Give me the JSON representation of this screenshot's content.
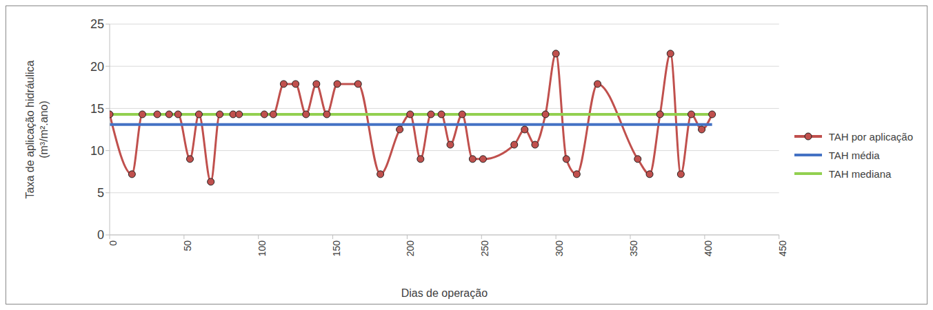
{
  "chart_data": {
    "type": "line",
    "x_label": "Dias de operação",
    "y_label": "Taxa de aplicação hidráulica\n(m³/m².ano)",
    "xlim": [
      0,
      450
    ],
    "xticks": [
      0,
      50,
      100,
      150,
      200,
      250,
      300,
      350,
      400,
      450
    ],
    "ylim": [
      0,
      25
    ],
    "yticks": [
      0,
      5,
      10,
      15,
      20,
      25
    ],
    "grid": true,
    "legend": "right",
    "series": [
      {
        "name": "TAH por aplicação",
        "color": "#c0504d",
        "marker": "circle",
        "x": [
          0,
          15,
          22,
          32,
          40,
          46,
          54,
          60,
          68,
          74,
          83,
          87,
          104,
          110,
          117,
          125,
          132,
          139,
          146,
          153,
          167,
          182,
          195,
          202,
          209,
          216,
          223,
          229,
          237,
          244,
          251,
          272,
          279,
          286,
          293,
          300,
          307,
          314,
          328,
          355,
          363,
          370,
          377,
          384,
          391,
          398,
          405
        ],
        "values": [
          14.3,
          7.2,
          14.3,
          14.3,
          14.3,
          14.3,
          9.0,
          14.3,
          6.3,
          14.3,
          14.3,
          14.3,
          14.3,
          14.3,
          17.9,
          17.9,
          14.3,
          17.9,
          14.3,
          17.9,
          17.9,
          7.2,
          12.5,
          14.3,
          9.0,
          14.3,
          14.3,
          10.7,
          14.3,
          9.0,
          9.0,
          10.7,
          12.5,
          10.7,
          14.3,
          21.5,
          9.0,
          7.2,
          17.9,
          9.0,
          7.2,
          14.3,
          21.5,
          7.2,
          14.3,
          12.5,
          14.3
        ]
      },
      {
        "name": "TAH média",
        "color": "#4472c4",
        "marker": "none",
        "x": [
          0,
          405
        ],
        "values": [
          13.1,
          13.1
        ]
      },
      {
        "name": "TAH mediana",
        "color": "#92d050",
        "marker": "none",
        "x": [
          0,
          405
        ],
        "values": [
          14.3,
          14.3
        ]
      }
    ]
  }
}
